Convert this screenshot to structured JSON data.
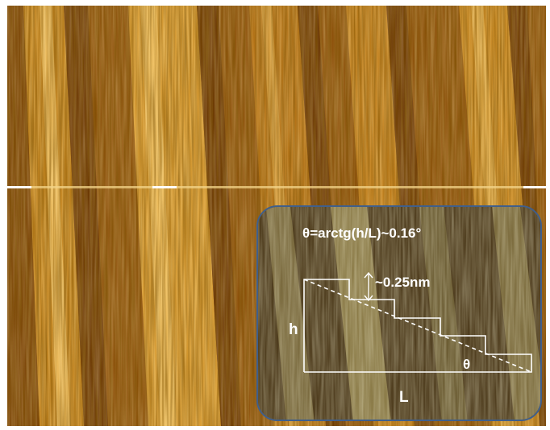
{
  "colors": {
    "terrace_dark": "#6e3a05",
    "terrace_mid": "#a8660c",
    "terrace_bright": "#e8b552",
    "highlight": "#fff2c2",
    "inset_border": "#3f5f8c",
    "annotation": "#ffffff"
  },
  "inset": {
    "formula": "θ=arctg(h/L)~0.16°",
    "step_height": "~0.25nm",
    "height_label": "h",
    "length_label": "L",
    "angle_label": "θ"
  }
}
